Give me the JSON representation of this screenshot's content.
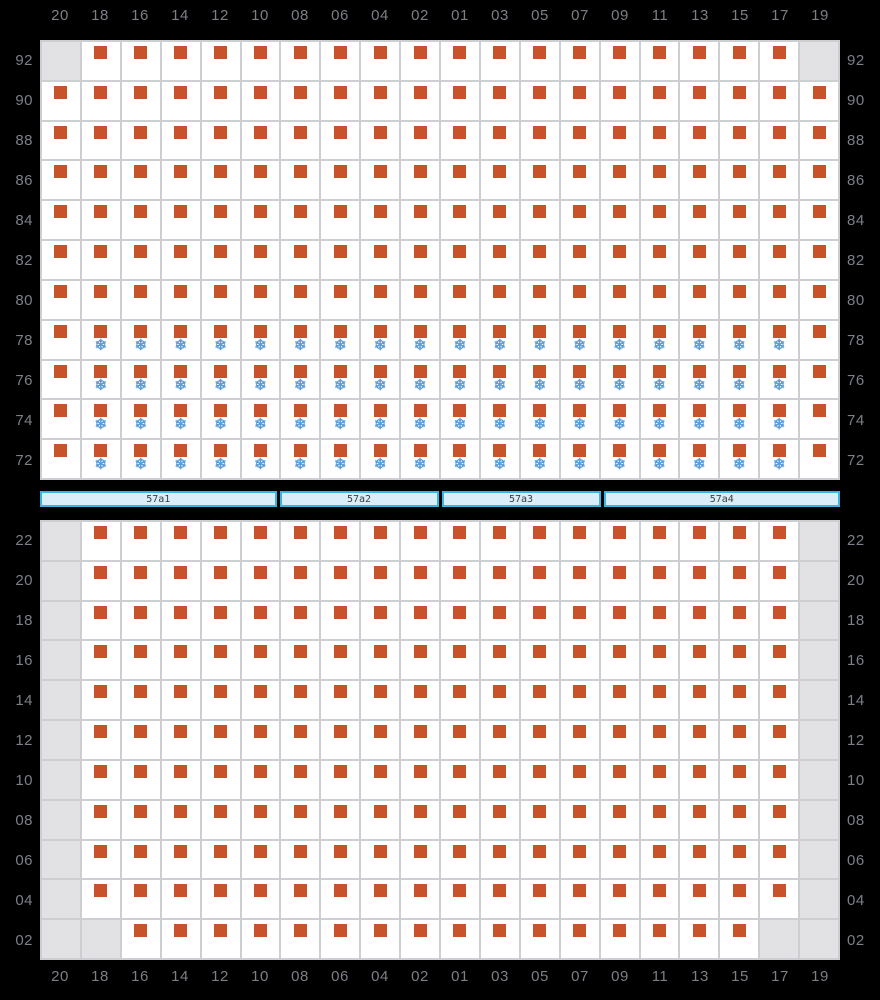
{
  "colors": {
    "background": "#000000",
    "label": "#7c7f87",
    "container": "#c8522a",
    "reefer": "#5c9ed6",
    "cell_bg": "#ffffff",
    "cell_disabled": "#e2e2e5",
    "grid_line": "#cdced2",
    "bar_fill": "#daeef9",
    "bar_border": "#3fb2e5",
    "bar_text": "#3c3c3c"
  },
  "icons": {
    "reefer_snowflake": "❄"
  },
  "cell_codes": {
    "S": "container",
    "R": "container-with-reefer",
    "X": "blocked"
  },
  "columns": [
    "20",
    "18",
    "16",
    "14",
    "12",
    "10",
    "08",
    "06",
    "04",
    "02",
    "01",
    "03",
    "05",
    "07",
    "09",
    "11",
    "13",
    "15",
    "17",
    "19"
  ],
  "top_grid": {
    "rows": [
      {
        "label": "92",
        "cells": "XSSSSSSSSSSSSSSSSSSX"
      },
      {
        "label": "90",
        "cells": "SSSSSSSSSSSSSSSSSSSS"
      },
      {
        "label": "88",
        "cells": "SSSSSSSSSSSSSSSSSSSS"
      },
      {
        "label": "86",
        "cells": "SSSSSSSSSSSSSSSSSSSS"
      },
      {
        "label": "84",
        "cells": "SSSSSSSSSSSSSSSSSSSS"
      },
      {
        "label": "82",
        "cells": "SSSSSSSSSSSSSSSSSSSS"
      },
      {
        "label": "80",
        "cells": "SSSSSSSSSSSSSSSSSSSS"
      },
      {
        "label": "78",
        "cells": "SRRRRRRRRRRRRRRRRRRS"
      },
      {
        "label": "76",
        "cells": "SRRRRRRRRRRRRRRRRRRS"
      },
      {
        "label": "74",
        "cells": "SRRRRRRRRRRRRRRRRRRS"
      },
      {
        "label": "72",
        "cells": "SRRRRRRRRRRRRRRRRRRS"
      }
    ]
  },
  "hatch_bar": {
    "segments": [
      {
        "label": "57a1",
        "span_cols": 6
      },
      {
        "label": "57a2",
        "span_cols": 4
      },
      {
        "label": "57a3",
        "span_cols": 4
      },
      {
        "label": "57a4",
        "span_cols": 6
      }
    ]
  },
  "bottom_grid": {
    "rows": [
      {
        "label": "22",
        "cells": "XSSSSSSSSSSSSSSSSSSX"
      },
      {
        "label": "20",
        "cells": "XSSSSSSSSSSSSSSSSSSX"
      },
      {
        "label": "18",
        "cells": "XSSSSSSSSSSSSSSSSSSX"
      },
      {
        "label": "16",
        "cells": "XSSSSSSSSSSSSSSSSSSX"
      },
      {
        "label": "14",
        "cells": "XSSSSSSSSSSSSSSSSSSX"
      },
      {
        "label": "12",
        "cells": "XSSSSSSSSSSSSSSSSSSX"
      },
      {
        "label": "10",
        "cells": "XSSSSSSSSSSSSSSSSSSX"
      },
      {
        "label": "08",
        "cells": "XSSSSSSSSSSSSSSSSSSX"
      },
      {
        "label": "06",
        "cells": "XSSSSSSSSSSSSSSSSSSX"
      },
      {
        "label": "04",
        "cells": "XSSSSSSSSSSSSSSSSSSX"
      },
      {
        "label": "02",
        "cells": "XXSSSSSSSSSSSSSSSSXX"
      }
    ]
  }
}
